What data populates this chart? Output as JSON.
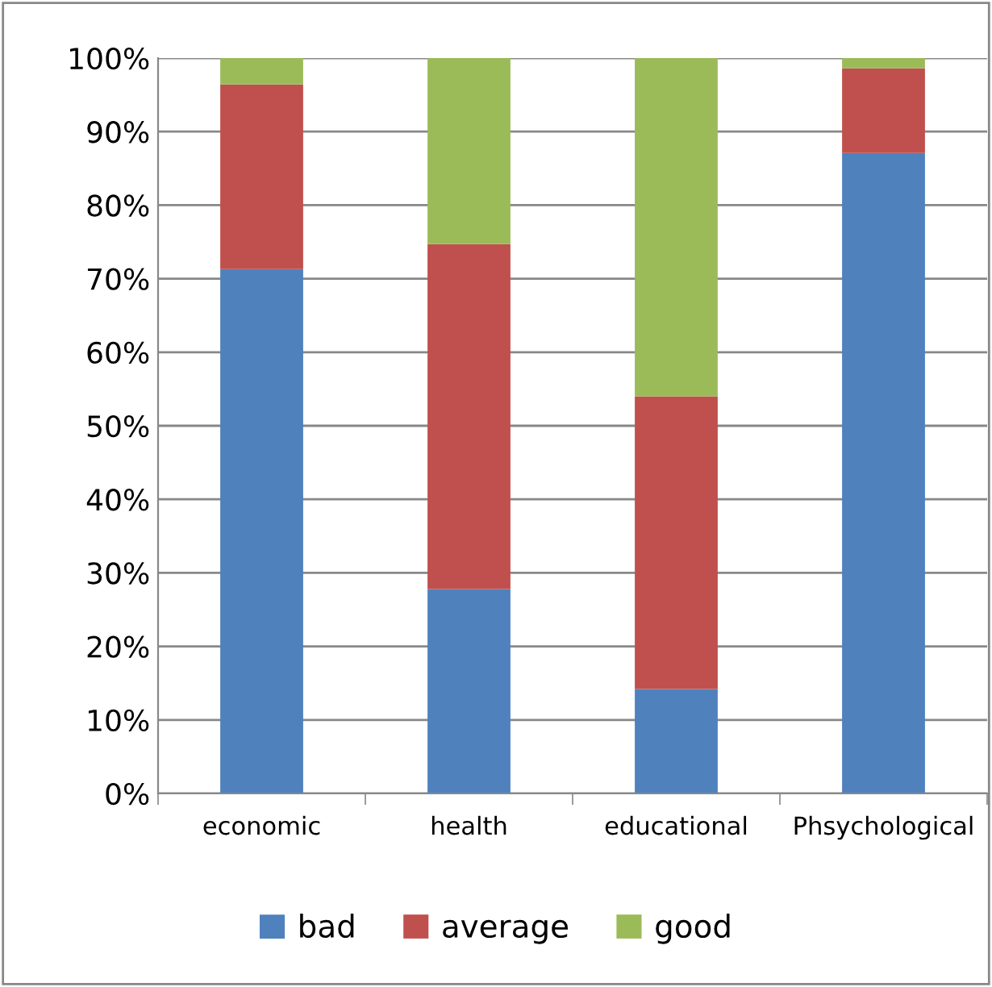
{
  "chart_data": {
    "type": "bar",
    "stacked": true,
    "categories": [
      "economic",
      "health",
      "educational",
      "Phsychological"
    ],
    "series": [
      {
        "name": "bad",
        "color": "#4f81bd",
        "values": [
          71.3,
          27.8,
          14.2,
          87.1
        ]
      },
      {
        "name": "average",
        "color": "#c0504d",
        "values": [
          25.1,
          46.9,
          39.8,
          11.5
        ]
      },
      {
        "name": "good",
        "color": "#9bbb59",
        "values": [
          3.6,
          25.3,
          46.0,
          1.4
        ]
      }
    ],
    "ylim": [
      0,
      100
    ],
    "yticks": [
      {
        "value": 0,
        "label": "0%"
      },
      {
        "value": 10,
        "label": "10%"
      },
      {
        "value": 20,
        "label": "20%"
      },
      {
        "value": 30,
        "label": "30%"
      },
      {
        "value": 40,
        "label": "40%"
      },
      {
        "value": 50,
        "label": "50%"
      },
      {
        "value": 60,
        "label": "60%"
      },
      {
        "value": 70,
        "label": "70%"
      },
      {
        "value": 80,
        "label": "80%"
      },
      {
        "value": 90,
        "label": "90%"
      },
      {
        "value": 100,
        "label": "100%"
      }
    ],
    "grid": "y",
    "legend": "bottom"
  }
}
